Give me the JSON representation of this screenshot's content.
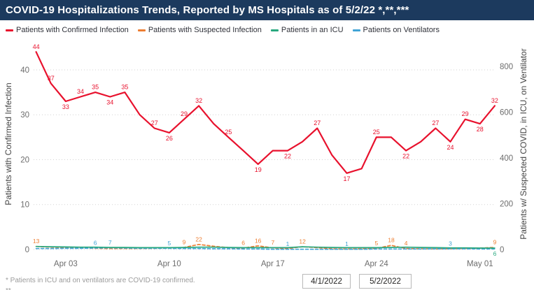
{
  "title": "COVID-19 Hospitalizations Trends, Reported by MS Hospitals as of 5/2/22 *,**,***",
  "legend": [
    {
      "label": "Patients with Confirmed Infection",
      "color": "#e8112d"
    },
    {
      "label": "Patients with Suspected Infection",
      "color": "#ed7d31"
    },
    {
      "label": "Patients in an ICU",
      "color": "#28a87e"
    },
    {
      "label": "Patients on Ventilators",
      "color": "#41a4d6"
    }
  ],
  "axes": {
    "left": {
      "title": "Patients with Confirmed Infection",
      "ticks": [
        0,
        10,
        20,
        30,
        40
      ],
      "max": 47
    },
    "right": {
      "title": "Patients w/ Suspected COVID, in ICU, on Ventilator",
      "ticks": [
        0,
        200,
        400,
        600,
        800
      ],
      "max": 922
    },
    "x": {
      "tick_labels": [
        "Apr 03",
        "Apr 10",
        "Apr 17",
        "Apr 24",
        "May 01"
      ],
      "tick_days": [
        2,
        9,
        16,
        23,
        30
      ]
    }
  },
  "chart_data": {
    "type": "line",
    "x_is_daily_dates": true,
    "dates": [
      "4/1",
      "4/2",
      "4/3",
      "4/4",
      "4/5",
      "4/6",
      "4/7",
      "4/8",
      "4/9",
      "4/10",
      "4/11",
      "4/12",
      "4/13",
      "4/14",
      "4/15",
      "4/16",
      "4/17",
      "4/18",
      "4/19",
      "4/20",
      "4/21",
      "4/22",
      "4/23",
      "4/24",
      "4/25",
      "4/26",
      "4/27",
      "4/28",
      "4/29",
      "4/30",
      "5/1",
      "5/2"
    ],
    "series": [
      {
        "name": "Patients with Suspected Infection",
        "axis": "R",
        "color": "#ed7d31",
        "style": "dashed",
        "width": 1.7,
        "values": [
          13,
          10,
          8,
          6,
          5,
          4,
          4,
          4,
          5,
          6,
          9,
          22,
          14,
          8,
          6,
          16,
          7,
          4,
          12,
          8,
          3,
          2,
          3,
          5,
          18,
          4,
          3,
          2,
          3,
          4,
          6,
          9
        ],
        "labels": [
          {
            "i": 0,
            "p": "a"
          },
          {
            "i": 10,
            "p": "a"
          },
          {
            "i": 11,
            "p": "a"
          },
          {
            "i": 14,
            "p": "a"
          },
          {
            "i": 15,
            "p": "a"
          },
          {
            "i": 16,
            "p": "a"
          },
          {
            "i": 18,
            "p": "a"
          },
          {
            "i": 23,
            "p": "a"
          },
          {
            "i": 24,
            "p": "a"
          },
          {
            "i": 25,
            "p": "a"
          },
          {
            "i": 31,
            "p": "a"
          }
        ]
      },
      {
        "name": "Patients on Ventilators",
        "axis": "R",
        "color": "#41a4d6",
        "style": "dashed",
        "width": 1.7,
        "values": [
          4,
          4,
          5,
          5,
          6,
          7,
          6,
          5,
          5,
          5,
          4,
          4,
          3,
          3,
          2,
          2,
          1,
          1,
          1,
          1,
          1,
          1,
          1,
          2,
          2,
          2,
          2,
          3,
          3,
          3,
          2,
          2
        ],
        "labels": [
          {
            "i": 4,
            "p": "a"
          },
          {
            "i": 5,
            "p": "a"
          },
          {
            "i": 9,
            "p": "a"
          },
          {
            "i": 17,
            "p": "a"
          },
          {
            "i": 21,
            "p": "a"
          },
          {
            "i": 28,
            "p": "a"
          }
        ]
      },
      {
        "name": "Patients in an ICU",
        "axis": "R",
        "color": "#28a87e",
        "style": "solid",
        "width": 1.7,
        "values": [
          13,
          12,
          11,
          10,
          10,
          9,
          9,
          8,
          8,
          8,
          9,
          10,
          10,
          9,
          8,
          8,
          8,
          8,
          12,
          10,
          9,
          8,
          8,
          8,
          9,
          10,
          9,
          8,
          7,
          7,
          6,
          6
        ],
        "labels": [
          {
            "i": 31,
            "p": "b"
          }
        ]
      },
      {
        "name": "Patients with Confirmed Infection",
        "axis": "L",
        "color": "#e8112d",
        "style": "solid",
        "width": 2.2,
        "values": [
          44,
          37,
          33,
          34,
          35,
          34,
          35,
          30,
          27,
          26,
          29,
          32,
          28,
          25,
          22,
          19,
          22,
          22,
          24,
          27,
          21,
          17,
          18,
          25,
          25,
          22,
          24,
          27,
          24,
          29,
          28,
          32
        ],
        "labels": [
          {
            "i": 0,
            "p": "a"
          },
          {
            "i": 1,
            "p": "a"
          },
          {
            "i": 2,
            "p": "b"
          },
          {
            "i": 3,
            "p": "a"
          },
          {
            "i": 4,
            "p": "a"
          },
          {
            "i": 5,
            "p": "b"
          },
          {
            "i": 6,
            "p": "a"
          },
          {
            "i": 8,
            "p": "a"
          },
          {
            "i": 9,
            "p": "b"
          },
          {
            "i": 10,
            "p": "a"
          },
          {
            "i": 11,
            "p": "a"
          },
          {
            "i": 13,
            "p": "a"
          },
          {
            "i": 15,
            "p": "b"
          },
          {
            "i": 17,
            "p": "b"
          },
          {
            "i": 19,
            "p": "a"
          },
          {
            "i": 21,
            "p": "b"
          },
          {
            "i": 23,
            "p": "a"
          },
          {
            "i": 25,
            "p": "b"
          },
          {
            "i": 27,
            "p": "a"
          },
          {
            "i": 28,
            "p": "b"
          },
          {
            "i": 29,
            "p": "a"
          },
          {
            "i": 30,
            "p": "b"
          },
          {
            "i": 31,
            "p": "a"
          }
        ]
      }
    ],
    "title": "COVID-19 Hospitalizations Trends, Reported by MS Hospitals as of 5/2/22 *,**,***",
    "ylabel_left": "Patients with Confirmed Infection",
    "ylabel_right": "Patients w/ Suspected COVID, in ICU, on Ventilator",
    "ylim_left": [
      0,
      47
    ],
    "ylim_right": [
      0,
      922
    ],
    "grid": "dotted-horizontal",
    "legend_position": "top"
  },
  "slicer": {
    "start": "4/1/2022",
    "end": "5/2/2022"
  },
  "footnotes": [
    "* Patients in ICU and on ventilators are COVID-19 confirmed.",
    "**"
  ]
}
